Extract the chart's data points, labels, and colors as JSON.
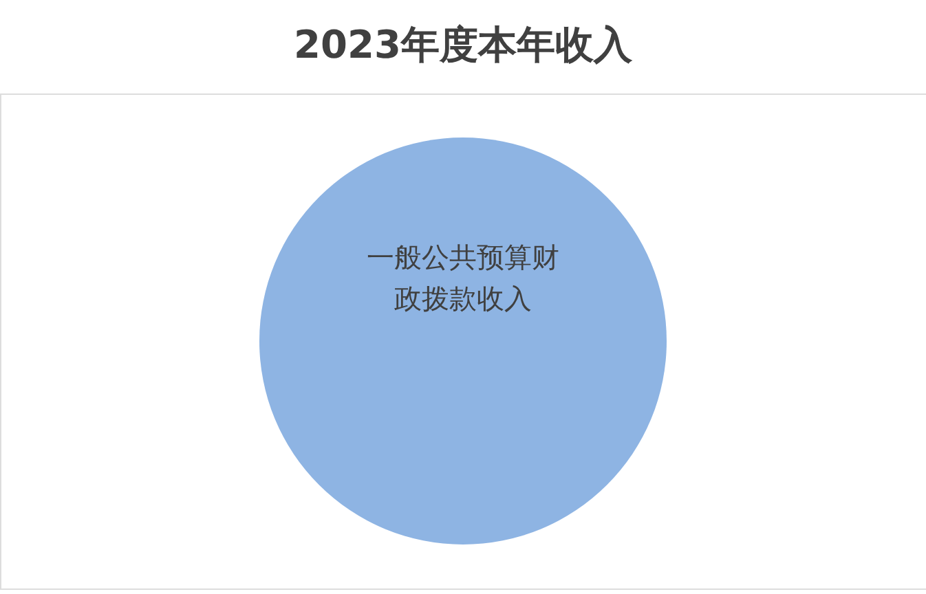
{
  "chart_data": {
    "type": "pie",
    "title": "2023年度本年收入",
    "categories": [
      "一般公共预算财政拨款收入"
    ],
    "values": [
      100
    ],
    "colors": [
      "#8eb4e3"
    ],
    "legend": false
  }
}
